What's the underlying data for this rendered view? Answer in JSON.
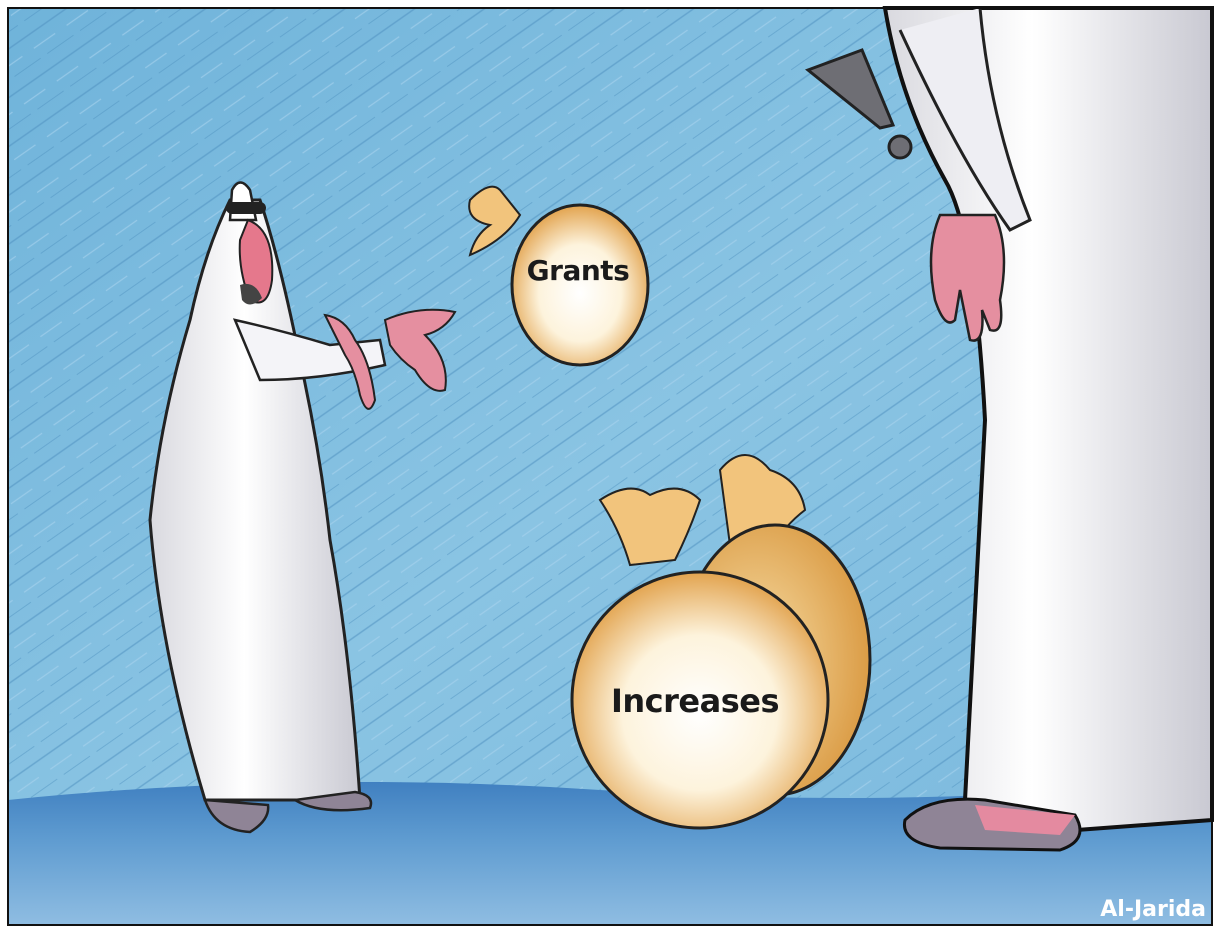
{
  "cartoon": {
    "labels": {
      "grants": "Grants",
      "increases": "Increases"
    },
    "credit": "Al-Jarida"
  }
}
